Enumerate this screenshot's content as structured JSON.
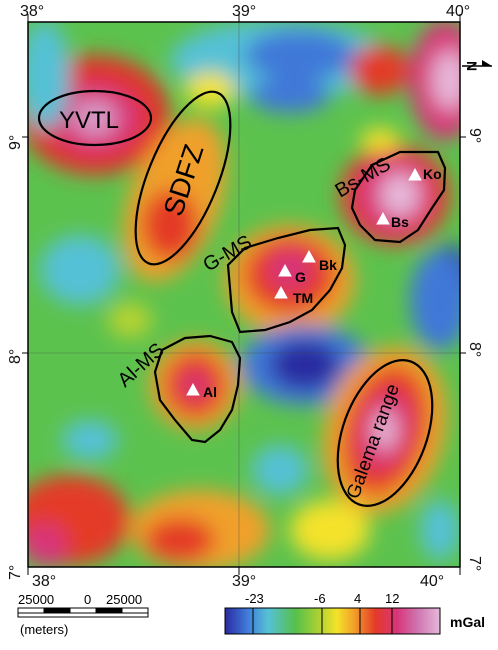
{
  "axes": {
    "top_lon_labels": [
      "38°",
      "39°",
      "40°"
    ],
    "bottom_lon_labels": [
      "38°",
      "39°",
      "40°"
    ],
    "left_lat_labels": [
      "9°",
      "8°",
      "7°"
    ],
    "right_lat_labels": [
      "9°",
      "8°",
      "7°"
    ]
  },
  "north_arrow": {
    "label": "N"
  },
  "zones": {
    "yvtl": "YVTL",
    "sdfz": "SDFZ",
    "bs_ms": "Bs-MS",
    "g_ms": "G-MS",
    "al_ms": "Al-MS",
    "galema": "Galema range"
  },
  "sites": {
    "ko": "Ko",
    "bs": "Bs",
    "bk": "Bk",
    "g": "G",
    "tm": "TM",
    "al": "Al"
  },
  "scale_bar": {
    "labels": [
      "25000",
      "0",
      "25000"
    ],
    "unit": "(meters)"
  },
  "legend": {
    "ticks": [
      "-23",
      "-6",
      "4",
      "12"
    ],
    "unit": "mGal",
    "colors": [
      "#2a2aa0",
      "#3f78d8",
      "#55c1d6",
      "#57c04a",
      "#b8d330",
      "#f4e22a",
      "#f2a02a",
      "#e43a28",
      "#d8357a",
      "#cf78b2",
      "#e6b8da"
    ]
  }
}
